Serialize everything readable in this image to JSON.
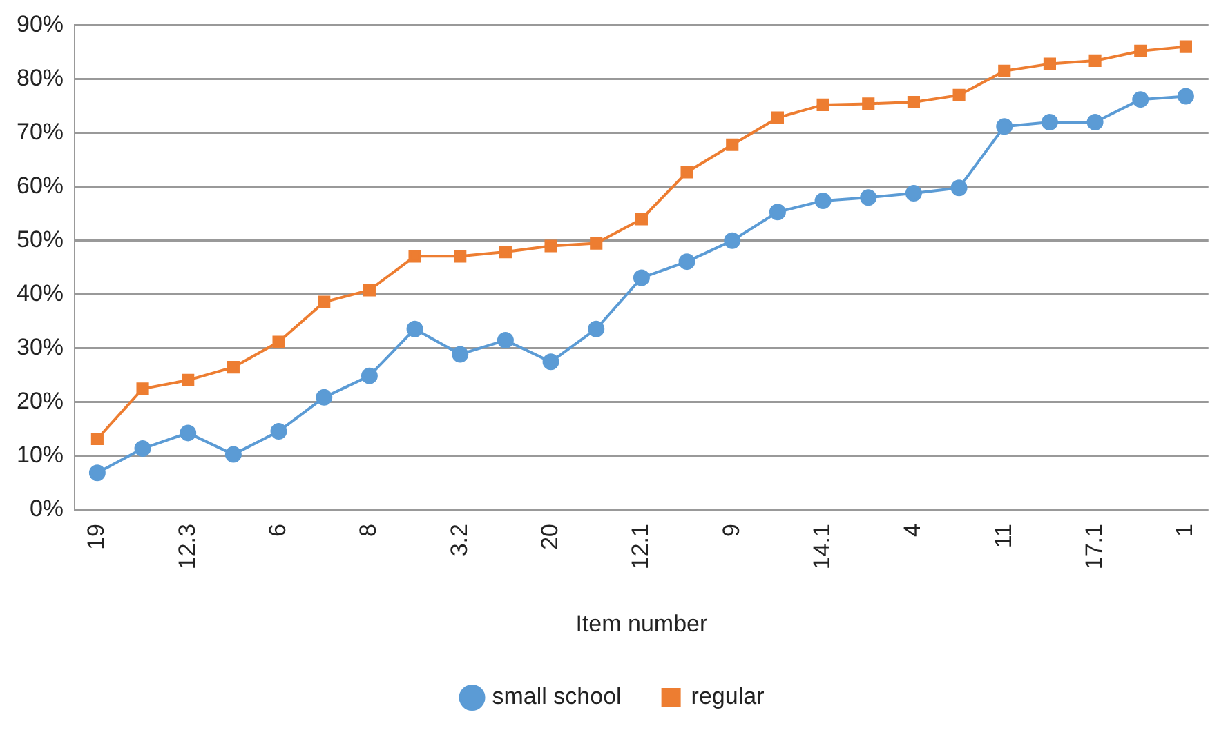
{
  "chart_data": {
    "type": "line",
    "xlabel": "Item number",
    "categories": [
      "19",
      null,
      "12.3",
      null,
      "6",
      null,
      "8",
      null,
      "3.2",
      null,
      "20",
      null,
      "12.1",
      null,
      "9",
      null,
      "14.1",
      null,
      "4",
      null,
      "11",
      null,
      "17.1",
      null,
      "1"
    ],
    "series": [
      {
        "name": "small school",
        "color": "#5b9bd5",
        "marker": "circle",
        "values": [
          6.9,
          11.4,
          14.3,
          10.3,
          14.6,
          20.9,
          24.9,
          33.6,
          28.9,
          31.5,
          27.5,
          33.6,
          43.1,
          46.1,
          50,
          55.3,
          57.4,
          58,
          58.8,
          59.8,
          71.2,
          72,
          72,
          76.2,
          76.8
        ]
      },
      {
        "name": "regular",
        "color": "#ed7d31",
        "marker": "square",
        "values": [
          13.2,
          22.5,
          24.1,
          26.5,
          31.2,
          38.6,
          40.8,
          47.1,
          47.1,
          47.9,
          49,
          49.5,
          54,
          62.7,
          67.8,
          72.8,
          75.2,
          75.4,
          75.7,
          77,
          81.5,
          82.8,
          83.4,
          85.2,
          86
        ]
      }
    ],
    "ylim": [
      0,
      90
    ],
    "yticks": [
      {
        "value": 0,
        "label": "0%"
      },
      {
        "value": 10,
        "label": "10%"
      },
      {
        "value": 20,
        "label": "20%"
      },
      {
        "value": 30,
        "label": "30%"
      },
      {
        "value": 40,
        "label": "40%"
      },
      {
        "value": 50,
        "label": "50%"
      },
      {
        "value": 60,
        "label": "60%"
      },
      {
        "value": 70,
        "label": "70%"
      },
      {
        "value": 80,
        "label": "80%"
      },
      {
        "value": 90,
        "label": "90%"
      }
    ],
    "grid": "y",
    "legend": "bottom"
  }
}
